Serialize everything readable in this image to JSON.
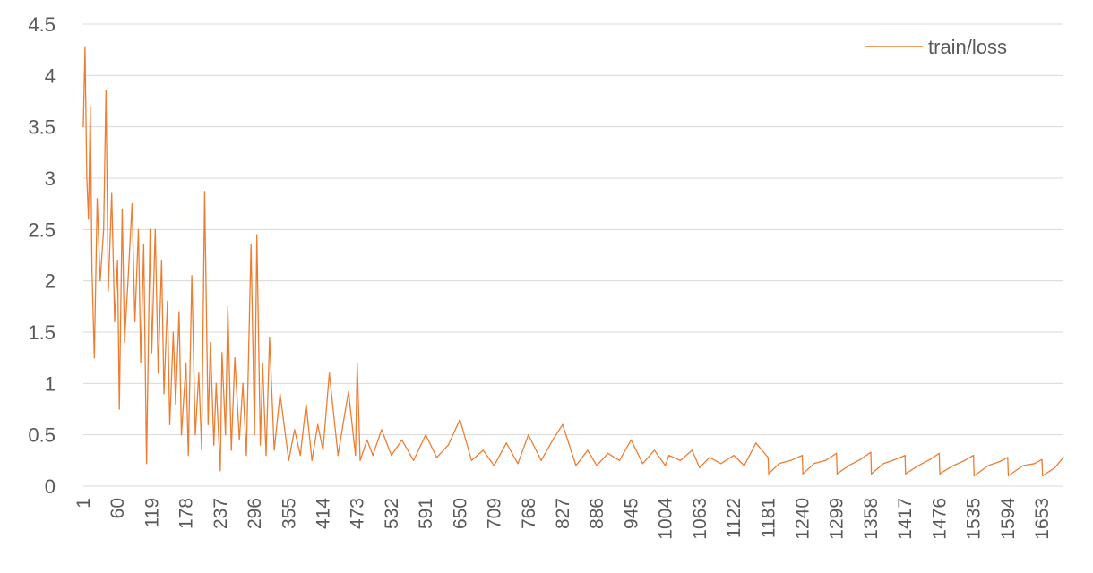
{
  "chart_data": {
    "type": "line",
    "title": "",
    "xlabel": "",
    "ylabel": "",
    "ylim": [
      0,
      4.5
    ],
    "y_ticks": [
      "0",
      "0.5",
      "1",
      "1.5",
      "2",
      "2.5",
      "3",
      "3.5",
      "4",
      "4.5"
    ],
    "x_ticks": [
      "1",
      "60",
      "119",
      "178",
      "237",
      "296",
      "355",
      "414",
      "473",
      "532",
      "591",
      "650",
      "709",
      "768",
      "827",
      "886",
      "945",
      "1004",
      "1063",
      "1122",
      "1181",
      "1240",
      "1299",
      "1358",
      "1417",
      "1476",
      "1535",
      "1594",
      "1653"
    ],
    "x_range": [
      1,
      1690
    ],
    "grid": "horizontal",
    "legend_position": "top-right",
    "series": [
      {
        "name": "train/loss",
        "color": "#ed7d31",
        "x": [
          1,
          4,
          7,
          10,
          13,
          16,
          20,
          25,
          30,
          36,
          40,
          44,
          50,
          55,
          60,
          63,
          68,
          72,
          78,
          85,
          90,
          96,
          100,
          105,
          110,
          116,
          119,
          125,
          130,
          136,
          140,
          146,
          150,
          156,
          160,
          166,
          170,
          178,
          182,
          188,
          194,
          200,
          205,
          210,
          216,
          220,
          226,
          230,
          237,
          240,
          246,
          250,
          256,
          262,
          270,
          276,
          282,
          290,
          296,
          300,
          306,
          310,
          316,
          322,
          330,
          340,
          355,
          365,
          375,
          385,
          395,
          405,
          414,
          425,
          440,
          450,
          458,
          470,
          473,
          478,
          490,
          500,
          515,
          532,
          550,
          570,
          591,
          610,
          630,
          650,
          670,
          690,
          709,
          730,
          750,
          768,
          790,
          810,
          827,
          850,
          870,
          886,
          905,
          925,
          945,
          965,
          985,
          1004,
          1010,
          1030,
          1050,
          1063,
          1080,
          1100,
          1122,
          1140,
          1160,
          1181,
          1182,
          1200,
          1220,
          1240,
          1241,
          1260,
          1280,
          1299,
          1300,
          1320,
          1340,
          1358,
          1359,
          1380,
          1400,
          1417,
          1418,
          1440,
          1460,
          1476,
          1477,
          1500,
          1520,
          1535,
          1536,
          1560,
          1580,
          1594,
          1595,
          1620,
          1640,
          1653,
          1654,
          1675,
          1690
        ],
        "values": [
          3.5,
          4.28,
          3.0,
          2.6,
          3.7,
          2.1,
          1.25,
          2.8,
          2.0,
          2.5,
          3.85,
          1.9,
          2.85,
          1.6,
          2.2,
          0.75,
          2.7,
          1.4,
          2.0,
          2.75,
          1.6,
          2.5,
          1.2,
          2.35,
          0.22,
          2.5,
          1.3,
          2.5,
          1.1,
          2.2,
          0.9,
          1.8,
          0.6,
          1.5,
          0.8,
          1.7,
          0.5,
          1.2,
          0.3,
          2.05,
          0.5,
          1.1,
          0.35,
          2.87,
          0.6,
          1.4,
          0.4,
          1.0,
          0.15,
          1.3,
          0.5,
          1.75,
          0.35,
          1.25,
          0.45,
          1.0,
          0.3,
          2.35,
          0.5,
          2.45,
          0.4,
          1.2,
          0.3,
          1.45,
          0.35,
          0.9,
          0.25,
          0.55,
          0.3,
          0.8,
          0.25,
          0.6,
          0.35,
          1.1,
          0.3,
          0.65,
          0.92,
          0.3,
          1.2,
          0.25,
          0.45,
          0.3,
          0.55,
          0.3,
          0.45,
          0.25,
          0.5,
          0.28,
          0.4,
          0.65,
          0.25,
          0.35,
          0.2,
          0.42,
          0.22,
          0.5,
          0.25,
          0.45,
          0.6,
          0.2,
          0.35,
          0.2,
          0.32,
          0.25,
          0.45,
          0.22,
          0.35,
          0.2,
          0.3,
          0.25,
          0.35,
          0.18,
          0.28,
          0.22,
          0.3,
          0.2,
          0.42,
          0.28,
          0.12,
          0.22,
          0.25,
          0.3,
          0.12,
          0.22,
          0.25,
          0.32,
          0.12,
          0.2,
          0.26,
          0.33,
          0.12,
          0.22,
          0.26,
          0.3,
          0.12,
          0.2,
          0.26,
          0.32,
          0.12,
          0.2,
          0.25,
          0.3,
          0.1,
          0.2,
          0.24,
          0.28,
          0.1,
          0.2,
          0.22,
          0.26,
          0.1,
          0.18,
          0.28
        ]
      }
    ]
  }
}
